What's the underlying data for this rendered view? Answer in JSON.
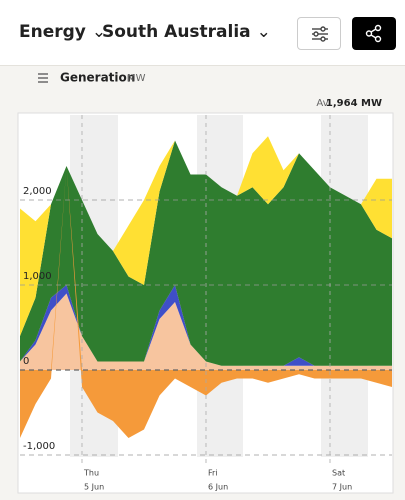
{
  "header": {
    "region_type": "Energy",
    "region": "South Australia"
  },
  "panel": {
    "title": "Generation",
    "unit": "MW",
    "average_label": "Av.",
    "average_value": "1,964 MW"
  },
  "chart_data": {
    "type": "stacked-area",
    "categories": [
      null,
      null,
      null,
      null,
      "Thu",
      null,
      null,
      null,
      null,
      null,
      null,
      null,
      "Fri",
      null,
      null,
      null,
      null,
      null,
      null,
      null,
      "Sat",
      null,
      null,
      null,
      null
    ],
    "dates": [
      null,
      null,
      null,
      null,
      "5 Jun",
      null,
      null,
      null,
      null,
      null,
      null,
      null,
      "6 Jun",
      null,
      null,
      null,
      null,
      null,
      null,
      null,
      "7 Jun",
      null,
      null,
      null,
      null
    ],
    "ylim": [
      -1000,
      3000
    ],
    "yticks": [
      {
        "value": -1000,
        "label": "-1,000"
      },
      0,
      {
        "value": 1000,
        "label": "1,000"
      },
      {
        "value": 2000,
        "label": "2,000"
      }
    ],
    "grid": true,
    "series": [
      {
        "color": "#f7c59f",
        "values": [
          100,
          300,
          700,
          900,
          400,
          100,
          100,
          100,
          100,
          600,
          800,
          300,
          100,
          50,
          50,
          50,
          50,
          50,
          50,
          50,
          50,
          50,
          50,
          50,
          50
        ]
      },
      {
        "color": "#3f4fc8",
        "values": [
          0,
          50,
          150,
          100,
          0,
          0,
          0,
          0,
          0,
          100,
          200,
          0,
          0,
          0,
          0,
          0,
          0,
          0,
          100,
          0,
          0,
          0,
          0,
          0,
          0
        ]
      },
      {
        "color": "#2f7d2f",
        "values": [
          300,
          500,
          1100,
          1400,
          1600,
          1500,
          1300,
          1000,
          900,
          1400,
          1700,
          2000,
          2200,
          2100,
          2000,
          2100,
          1900,
          2100,
          2400,
          2300,
          2100,
          2000,
          1900,
          1600,
          1500
        ]
      },
      {
        "color": "#ffe033",
        "values": [
          1500,
          900,
          0,
          0,
          0,
          0,
          0,
          600,
          1000,
          300,
          0,
          0,
          0,
          0,
          0,
          400,
          800,
          200,
          0,
          0,
          0,
          0,
          0,
          600,
          700
        ]
      },
      {
        "color": "#f59a3a",
        "values": [
          -800,
          -400,
          -100,
          0,
          -200,
          -500,
          -600,
          -800,
          -700,
          -300,
          -100,
          -200,
          -300,
          -150,
          -100,
          -100,
          -150,
          -100,
          -50,
          -100,
          -100,
          -100,
          -100,
          -150,
          -200
        ]
      }
    ]
  }
}
